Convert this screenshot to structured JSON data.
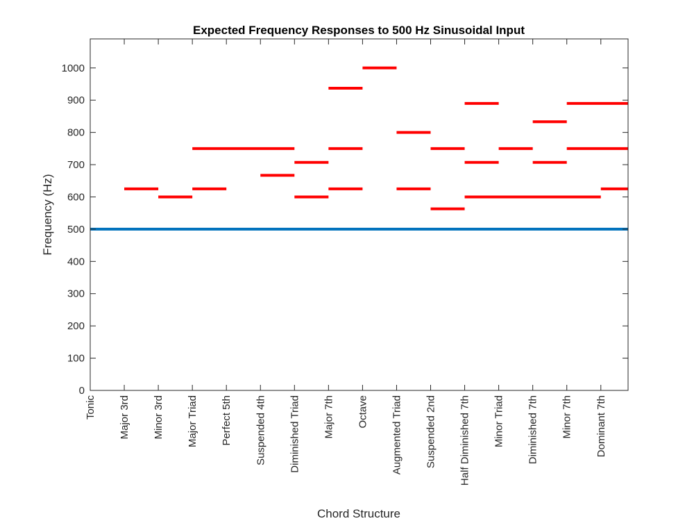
{
  "chart_data": {
    "type": "line",
    "title": "Expected Frequency Responses to 500 Hz Sinusoidal Input",
    "xlabel": "Chord Structure",
    "ylabel": "Frequency (Hz)",
    "categories": [
      "Tonic",
      "Major 3rd",
      "Minor 3rd",
      "Major Triad",
      "Perfect 5th",
      "Suspended 4th",
      "Diminished Triad",
      "Major 7th",
      "Octave",
      "Augmented Triad",
      "Suspended 2nd",
      "Half Diminished 7th",
      "Minor Triad",
      "Diminished 7th",
      "Minor 7th",
      "Dominant 7th"
    ],
    "xlim": [
      1,
      16.8
    ],
    "ylim": [
      0,
      1090
    ],
    "yticks": [
      0,
      100,
      200,
      300,
      400,
      500,
      600,
      700,
      800,
      900,
      1000
    ],
    "grid": false,
    "series": [
      {
        "color": "#0072bd",
        "values": [
          [
            1,
            500
          ],
          [
            16.8,
            500
          ]
        ]
      },
      {
        "color": "#ff0000",
        "segments": [
          {
            "x": [
              2,
              3
            ],
            "y": 625
          },
          {
            "x": [
              3,
              4
            ],
            "y": 600
          },
          {
            "x": [
              4,
              5
            ],
            "y": 625
          },
          {
            "x": [
              4,
              7
            ],
            "y": 750
          },
          {
            "x": [
              6,
              7
            ],
            "y": 667
          },
          {
            "x": [
              7,
              8
            ],
            "y": 600
          },
          {
            "x": [
              7,
              8
            ],
            "y": 707
          },
          {
            "x": [
              8,
              9
            ],
            "y": 625
          },
          {
            "x": [
              8,
              9
            ],
            "y": 750
          },
          {
            "x": [
              8,
              9
            ],
            "y": 937
          },
          {
            "x": [
              9,
              10
            ],
            "y": 1000
          },
          {
            "x": [
              10,
              11
            ],
            "y": 625
          },
          {
            "x": [
              10,
              11
            ],
            "y": 800
          },
          {
            "x": [
              11,
              12
            ],
            "y": 563
          },
          {
            "x": [
              11,
              12
            ],
            "y": 750
          },
          {
            "x": [
              12,
              16
            ],
            "y": 600
          },
          {
            "x": [
              12,
              13
            ],
            "y": 707
          },
          {
            "x": [
              12,
              13
            ],
            "y": 890
          },
          {
            "x": [
              13,
              14
            ],
            "y": 750
          },
          {
            "x": [
              14,
              15
            ],
            "y": 707
          },
          {
            "x": [
              14,
              15
            ],
            "y": 833
          },
          {
            "x": [
              15,
              16.8
            ],
            "y": 750
          },
          {
            "x": [
              15,
              16.8
            ],
            "y": 890
          },
          {
            "x": [
              16,
              16.8
            ],
            "y": 625
          }
        ]
      }
    ]
  }
}
